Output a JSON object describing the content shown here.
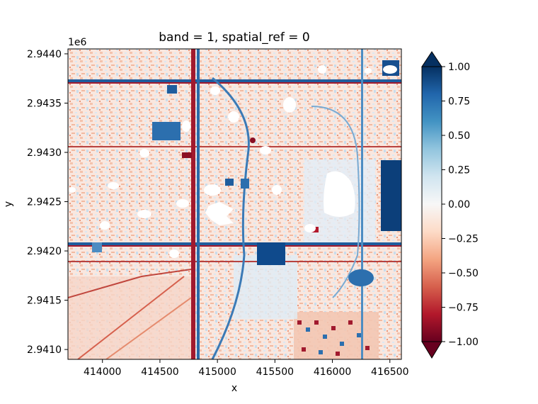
{
  "chart_data": {
    "type": "heatmap",
    "title": "band = 1, spatial_ref = 0",
    "xlabel": "x",
    "ylabel": "y",
    "y_offset_label": "1e6",
    "xlim": [
      413700,
      416600
    ],
    "ylim": [
      2.9409,
      2.94405
    ],
    "x_ticks": [
      414000,
      414500,
      415000,
      415500,
      416000,
      416500
    ],
    "y_ticks": [
      2.941,
      2.9415,
      2.942,
      2.9425,
      2.943,
      2.9435,
      2.944
    ],
    "x_tick_labels": [
      "414000",
      "414500",
      "415000",
      "415500",
      "416000",
      "416500"
    ],
    "y_tick_labels": [
      "2.9410",
      "2.9415",
      "2.9420",
      "2.9425",
      "2.9430",
      "2.9435",
      "2.9440"
    ],
    "colorbar": {
      "colormap": "RdBu",
      "range": [
        -1.0,
        1.0
      ],
      "extend": "both",
      "ticks": [
        1.0,
        0.75,
        0.5,
        0.25,
        0.0,
        -0.25,
        -0.5,
        -0.75,
        -1.0
      ],
      "tick_labels": [
        "1.00",
        "0.75",
        "0.50",
        "0.25",
        "0.00",
        "−0.25",
        "−0.50",
        "−0.75",
        "−1.00"
      ],
      "colors": [
        "#67001f",
        "#b2182b",
        "#d6604d",
        "#f4a582",
        "#fddbc7",
        "#f7f7f7",
        "#d1e5f0",
        "#92c5de",
        "#4393c3",
        "#2166ac",
        "#053061"
      ]
    }
  }
}
